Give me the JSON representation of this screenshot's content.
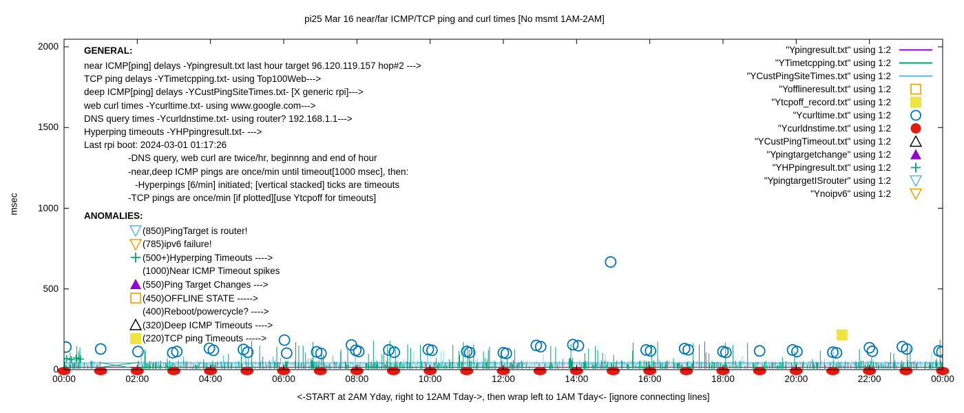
{
  "title": "pi25 Mar 16  near/far ICMP/TCP ping and curl times [No msmt 1AM-2AM]",
  "y_axis": {
    "label": "msec",
    "ticks": [
      0,
      500,
      1000,
      1500,
      2000
    ]
  },
  "x_axis": {
    "ticks": [
      "00:00",
      "02:00",
      "04:00",
      "06:00",
      "08:00",
      "10:00",
      "12:00",
      "14:00",
      "16:00",
      "18:00",
      "20:00",
      "22:00",
      "00:00"
    ],
    "caption": "<-START at 2AM Yday, right to 12AM Tday->, then wrap left to 1AM Tday<- [ignore connecting lines]"
  },
  "general_block": {
    "heading": "GENERAL:",
    "lines": [
      {
        "indent": 0,
        "text": "near ICMP[ping] delays -Ypingresult.txt last hour target 96.120.119.157 hop#2 --->"
      },
      {
        "indent": 0,
        "text": "TCP ping delays -YTimetcpping.txt- using Top100Web--->"
      },
      {
        "indent": 0,
        "text": "deep ICMP[ping] delays -YCustPingSiteTimes.txt- [X generic rpi]--->"
      },
      {
        "indent": 0,
        "text": "web curl times -Ycurltime.txt- using www.google.com--->"
      },
      {
        "indent": 0,
        "text": "DNS query times -Ycurldnstime.txt- using router? 192.168.1.1--->"
      },
      {
        "indent": 0,
        "text": "Hyperping timeouts -YHPpingresult.txt- --->"
      },
      {
        "indent": 0,
        "text": "Last rpi boot: 2024-03-01 01:17:26"
      },
      {
        "indent": 64,
        "text": "-DNS query, web curl are twice/hr, beginnng and end of hour"
      },
      {
        "indent": 64,
        "text": "-near,deep ICMP pings are once/min until timeout[1000 msec], then:"
      },
      {
        "indent": 74,
        "text": "-Hyperpings [6/min] initiated; [vertical stacked] ticks are timeouts"
      },
      {
        "indent": 64,
        "text": "-TCP pings are once/min [if plotted][use Ytcpoff for timeouts]"
      }
    ]
  },
  "anomalies_block": {
    "heading": "ANOMALIES:",
    "rows": [
      {
        "marker": "triangle-down-open",
        "color": "#56b4e9",
        "text": "(850)PingTarget is router!"
      },
      {
        "marker": "triangle-down-open",
        "color": "#e69f00",
        "text": "(785)ipv6 failure!"
      },
      {
        "marker": "plus",
        "color": "#009e73",
        "text": "(500+)Hyperping Timeouts ---->"
      },
      {
        "marker": "none",
        "color": "",
        "text": "(1000)Near ICMP Timeout spikes"
      },
      {
        "marker": "triangle-up-filled",
        "color": "#9400d3",
        "text": "(550)Ping Target Changes --->"
      },
      {
        "marker": "square-open",
        "color": "#e69f00",
        "text": "(450)OFFLINE STATE ----->"
      },
      {
        "marker": "none",
        "color": "",
        "text": "(400)Reboot/powercycle? ---->"
      },
      {
        "marker": "triangle-up-open",
        "color": "#000000",
        "text": "(320)Deep ICMP Timeouts ---->"
      },
      {
        "marker": "square-filled",
        "color": "#f0e442",
        "text": "(220)TCP ping Timeouts ----->"
      }
    ]
  },
  "legend": {
    "rows": [
      {
        "label": "\"Ypingresult.txt\" using 1:2",
        "marker": "line",
        "color": "#9400d3"
      },
      {
        "label": "\"YTimetcpping.txt\" using 1:2",
        "marker": "line",
        "color": "#009e73"
      },
      {
        "label": "\"YCustPingSiteTimes.txt\" using 1:2",
        "marker": "line",
        "color": "#56b4e9"
      },
      {
        "label": "\"Yofflineresult.txt\" using 1:2",
        "marker": "square-open",
        "color": "#e69f00"
      },
      {
        "label": "\"Ytcpoff_record.txt\" using 1:2",
        "marker": "square-filled",
        "color": "#f0e442"
      },
      {
        "label": "\"Ycurltime.txt\" using 1:2",
        "marker": "circle-open",
        "color": "#0072b2"
      },
      {
        "label": "\"Ycurldnstime.txt\" using 1:2",
        "marker": "circle-filled",
        "color": "#e01b10"
      },
      {
        "label": "\"YCustPingTimeout.txt\" using 1:2",
        "marker": "triangle-up-open",
        "color": "#000000"
      },
      {
        "label": "\"Ypingtargetchange\" using 1:2",
        "marker": "triangle-up-filled",
        "color": "#9400d3"
      },
      {
        "label": "\"YHPpingresult.txt\" using 1:2",
        "marker": "plus",
        "color": "#009e73"
      },
      {
        "label": "\"YpingtargetISrouter\" using 1:2",
        "marker": "triangle-down-open",
        "color": "#56b4e9"
      },
      {
        "label": "\"Ynoipv6\" using 1:2",
        "marker": "triangle-down-open",
        "color": "#e69f00"
      }
    ]
  },
  "colors": {
    "near_icmp_purple": "#9400d3",
    "tcp_ping_teal": "#009e73",
    "deep_icmp_sky": "#56b4e9",
    "offline_orange": "#e69f00",
    "tcpoff_yellow": "#f0e442",
    "curl_blue": "#0072b2",
    "dns_red": "#e01b10",
    "frame_black": "#000000"
  },
  "chart_data": {
    "type": "line",
    "title": "pi25 Mar 16  near/far ICMP/TCP ping and curl times [No msmt 1AM-2AM]",
    "xlabel": "<-START at 2AM Yday, right to 12AM Tday->, then wrap left to 1AM Tday<- [ignore connecting lines]",
    "ylabel": "msec",
    "x_range_hours": [
      0,
      24
    ],
    "ylim": [
      0,
      2047
    ],
    "y_ticks": [
      0,
      500,
      1000,
      1500,
      2000
    ],
    "x_tick_labels": [
      "00:00",
      "02:00",
      "04:00",
      "06:00",
      "08:00",
      "10:00",
      "12:00",
      "14:00",
      "16:00",
      "18:00",
      "20:00",
      "22:00",
      "00:00"
    ],
    "measurement_gap_hours": [
      1.0,
      2.0
    ],
    "noise_seed": 1234,
    "series": [
      {
        "name": "Ypingresult.txt",
        "style": "line",
        "color": "#9400d3",
        "description": "near ICMP ping delay, flat ~15 msec all day",
        "baseline_msec": 15
      },
      {
        "name": "YTimetcpping.txt",
        "style": "line",
        "color": "#009e73",
        "description": "TCP ping delays, per-minute spikes 18-190 msec",
        "noise": {
          "step_h": 0.0167,
          "p_spike": 0.3,
          "spike_lo": 18,
          "spike_hi": 58,
          "p_tall": 0.055,
          "tall_lo": 55,
          "tall_hi": 190,
          "hump_center_h": 14.0
        }
      },
      {
        "name": "YCustPingSiteTimes.txt",
        "style": "line",
        "color": "#56b4e9",
        "description": "deep ICMP ping band ~25-60 msec with spikes to ~120",
        "topline_msec": 42,
        "noise": {
          "step_h": 0.034,
          "base": 20,
          "lo": 33,
          "hi": 55,
          "p_spike": 0.06,
          "spike_hi": 120
        }
      },
      {
        "name": "Ycurltime.txt",
        "style": "circle-open",
        "color": "#0072b2",
        "description": "web curl times twice per hour",
        "points": [
          [
            0.05,
            140
          ],
          [
            1.0,
            128
          ],
          [
            2.02,
            112
          ],
          [
            2.97,
            105
          ],
          [
            3.08,
            112
          ],
          [
            3.97,
            132
          ],
          [
            4.08,
            120
          ],
          [
            4.9,
            125
          ],
          [
            5.02,
            108
          ],
          [
            6.02,
            183
          ],
          [
            6.08,
            102
          ],
          [
            6.9,
            110
          ],
          [
            7.02,
            100
          ],
          [
            7.85,
            153
          ],
          [
            7.97,
            120
          ],
          [
            8.05,
            112
          ],
          [
            8.87,
            122
          ],
          [
            9.02,
            108
          ],
          [
            9.95,
            125
          ],
          [
            10.05,
            120
          ],
          [
            11.0,
            112
          ],
          [
            11.08,
            106
          ],
          [
            12.0,
            105
          ],
          [
            12.08,
            100
          ],
          [
            12.9,
            150
          ],
          [
            13.02,
            142
          ],
          [
            13.9,
            155
          ],
          [
            14.05,
            148
          ],
          [
            14.93,
            667
          ],
          [
            15.9,
            122
          ],
          [
            16.02,
            116
          ],
          [
            16.95,
            130
          ],
          [
            17.05,
            123
          ],
          [
            18.0,
            112
          ],
          [
            18.08,
            106
          ],
          [
            19.0,
            116
          ],
          [
            19.9,
            122
          ],
          [
            20.02,
            112
          ],
          [
            21.0,
            108
          ],
          [
            21.1,
            104
          ],
          [
            22.0,
            136
          ],
          [
            22.08,
            114
          ],
          [
            22.9,
            142
          ],
          [
            23.02,
            128
          ],
          [
            23.9,
            116
          ],
          [
            23.98,
            110
          ]
        ]
      },
      {
        "name": "Ycurldnstime.txt",
        "style": "circle-filled",
        "color": "#e01b10",
        "description": "DNS query times, ~0 msec dots at every hour",
        "points": [
          [
            0,
            0
          ],
          [
            1,
            0
          ],
          [
            2,
            0
          ],
          [
            3,
            0
          ],
          [
            4,
            0
          ],
          [
            5,
            0
          ],
          [
            6,
            0
          ],
          [
            7,
            0
          ],
          [
            8,
            0
          ],
          [
            9,
            0
          ],
          [
            10,
            0
          ],
          [
            11,
            0
          ],
          [
            12,
            0
          ],
          [
            13,
            0
          ],
          [
            14,
            0
          ],
          [
            15,
            0
          ],
          [
            16,
            0
          ],
          [
            17,
            0
          ],
          [
            18,
            0
          ],
          [
            19,
            0
          ],
          [
            20,
            0
          ],
          [
            21,
            0
          ],
          [
            22,
            0
          ],
          [
            23,
            0
          ],
          [
            24,
            0
          ]
        ]
      },
      {
        "name": "Ytcpoff_record.txt",
        "style": "square-filled",
        "color": "#f0e442",
        "description": "TCP ping timeout marker",
        "points": [
          [
            21.25,
            215
          ]
        ]
      },
      {
        "name": "YHPpingresult.txt",
        "style": "plus",
        "color": "#009e73",
        "description": "hyperping marks near start of day",
        "points": [
          [
            0.07,
            68
          ],
          [
            0.2,
            62
          ],
          [
            0.33,
            72
          ],
          [
            0.45,
            66
          ]
        ]
      }
    ],
    "connecting_lines_in_gap": [
      [
        [
          1.0,
          15
        ],
        [
          2.05,
          45
        ]
      ],
      [
        [
          1.0,
          42
        ],
        [
          2.05,
          4
        ]
      ]
    ]
  }
}
